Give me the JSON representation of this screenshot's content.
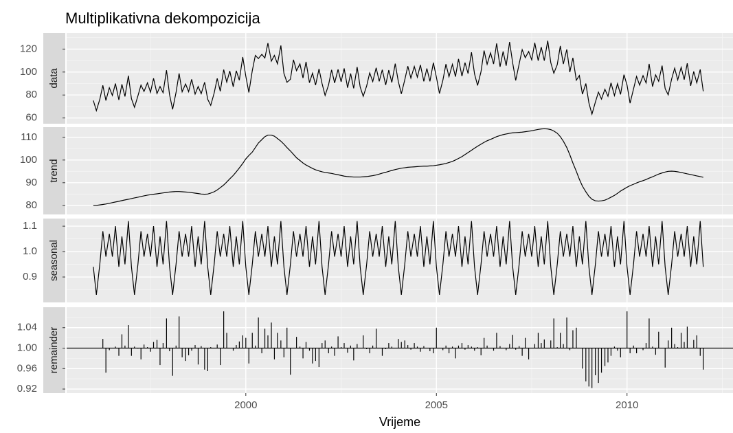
{
  "chart_data": {
    "type": "line",
    "title": "Multiplikativna dekompozicija",
    "xlabel": "Vrijeme",
    "xlim": [
      1995.3,
      2012.78
    ],
    "xticks": [
      2000,
      2005,
      2010
    ],
    "grid": true,
    "color": "#000000",
    "x": [
      1996,
      1996.08,
      1996.17,
      1996.25,
      1996.33,
      1996.42,
      1996.5,
      1996.58,
      1996.67,
      1996.75,
      1996.83,
      1996.92,
      1997,
      1997.08,
      1997.17,
      1997.25,
      1997.33,
      1997.42,
      1997.5,
      1997.58,
      1997.67,
      1997.75,
      1997.83,
      1997.92,
      1998,
      1998.08,
      1998.17,
      1998.25,
      1998.33,
      1998.42,
      1998.5,
      1998.58,
      1998.67,
      1998.75,
      1998.83,
      1998.92,
      1999,
      1999.08,
      1999.17,
      1999.25,
      1999.33,
      1999.42,
      1999.5,
      1999.58,
      1999.67,
      1999.75,
      1999.83,
      1999.92,
      2000,
      2000.08,
      2000.17,
      2000.25,
      2000.33,
      2000.42,
      2000.5,
      2000.58,
      2000.67,
      2000.75,
      2000.83,
      2000.92,
      2001,
      2001.08,
      2001.17,
      2001.25,
      2001.33,
      2001.42,
      2001.5,
      2001.58,
      2001.67,
      2001.75,
      2001.83,
      2001.92,
      2002,
      2002.08,
      2002.17,
      2002.25,
      2002.33,
      2002.42,
      2002.5,
      2002.58,
      2002.67,
      2002.75,
      2002.83,
      2002.92,
      2003,
      2003.08,
      2003.17,
      2003.25,
      2003.33,
      2003.42,
      2003.5,
      2003.58,
      2003.67,
      2003.75,
      2003.83,
      2003.92,
      2004,
      2004.08,
      2004.17,
      2004.25,
      2004.33,
      2004.42,
      2004.5,
      2004.58,
      2004.67,
      2004.75,
      2004.83,
      2004.92,
      2005,
      2005.08,
      2005.17,
      2005.25,
      2005.33,
      2005.42,
      2005.5,
      2005.58,
      2005.67,
      2005.75,
      2005.83,
      2005.92,
      2006,
      2006.08,
      2006.17,
      2006.25,
      2006.33,
      2006.42,
      2006.5,
      2006.58,
      2006.67,
      2006.75,
      2006.83,
      2006.92,
      2007,
      2007.08,
      2007.17,
      2007.25,
      2007.33,
      2007.42,
      2007.5,
      2007.58,
      2007.67,
      2007.75,
      2007.83,
      2007.92,
      2008,
      2008.08,
      2008.17,
      2008.25,
      2008.33,
      2008.42,
      2008.5,
      2008.58,
      2008.67,
      2008.75,
      2008.83,
      2008.92,
      2009,
      2009.08,
      2009.17,
      2009.25,
      2009.33,
      2009.42,
      2009.5,
      2009.58,
      2009.67,
      2009.75,
      2009.83,
      2009.92,
      2010,
      2010.08,
      2010.17,
      2010.25,
      2010.33,
      2010.42,
      2010.5,
      2010.58,
      2010.67,
      2010.75,
      2010.83,
      2010.92,
      2011,
      2011.08,
      2011.17,
      2011.25,
      2011.33,
      2011.42,
      2011.5,
      2011.58,
      2011.67,
      2011.75,
      2011.83,
      2011.92,
      2012
    ],
    "panels": [
      {
        "name": "data",
        "type": "line",
        "ylim": [
          55,
          134
        ],
        "yticks": [
          60,
          80,
          100,
          120
        ],
        "values": [
          75.2,
          66.4,
          76.2,
          88.4,
          75.2,
          86.3,
          79.6,
          90.0,
          75.7,
          89.3,
          78.7,
          96.8,
          76.8,
          69.3,
          79.3,
          88.6,
          83.1,
          90.6,
          82.4,
          94.5,
          81.3,
          87.4,
          82.0,
          101.6,
          80.2,
          67.5,
          82.2,
          98.8,
          82.8,
          89.6,
          82.9,
          93.7,
          80.8,
          87.4,
          81.1,
          91.1,
          76.3,
          71.0,
          81.7,
          94.4,
          83.2,
          102.1,
          91.2,
          100.9,
          87.2,
          101.1,
          92.9,
          113.1,
          96.4,
          82.2,
          101.2,
          114.5,
          111.7,
          115.4,
          112.2,
          125.2,
          109.5,
          114.5,
          107.1,
          123.1,
          98.8,
          91.1,
          93.7,
          110.7,
          101.2,
          107.1,
          94.8,
          108.9,
          90.7,
          99.0,
          88.6,
          102.7,
          90.0,
          79.6,
          88.7,
          101.9,
          90.5,
          102.3,
          91.5,
          103.2,
          86.3,
          98.7,
          85.8,
          104.4,
          87.0,
          78.8,
          87.9,
          99.3,
          91.7,
          103.7,
          91.9,
          102.0,
          88.7,
          101.7,
          90.9,
          107.3,
          91.9,
          81.0,
          93.2,
          105.1,
          94.7,
          104.8,
          95.5,
          106.2,
          91.9,
          103.1,
          91.9,
          108.1,
          95.5,
          81.3,
          92.9,
          106.9,
          95.9,
          106.7,
          96.0,
          111.4,
          96.4,
          108.2,
          98.7,
          117.2,
          98.4,
          88.3,
          100.3,
          118.7,
          106.8,
          116.7,
          107.0,
          124.9,
          104.6,
          117.9,
          105.5,
          126.2,
          108.0,
          92.7,
          107.0,
          119.5,
          112.5,
          117.9,
          110.6,
          125.5,
          109.9,
          121.7,
          109.9,
          127.3,
          108.2,
          99.0,
          106.4,
          122.7,
          107.0,
          119.7,
          99.9,
          112.4,
          92.9,
          97.0,
          80.7,
          90.0,
          73.1,
          63.3,
          73.8,
          82.5,
          76.5,
          85.0,
          78.9,
          90.6,
          79.5,
          89.9,
          80.5,
          97.7,
          88.7,
          72.9,
          85.2,
          96.1,
          88.6,
          96.9,
          90.5,
          107.1,
          87.3,
          97.5,
          92.0,
          105.6,
          85.6,
          80.1,
          93.9,
          103.4,
          93.1,
          104.1,
          93.4,
          107.6,
          88.0,
          100.5,
          90.6,
          102.2,
          83.2
        ]
      },
      {
        "name": "trend",
        "type": "line",
        "ylim": [
          76,
          114.5
        ],
        "yticks": [
          80,
          90,
          100,
          110
        ],
        "values": [
          80,
          80,
          80.2,
          80.4,
          80.6,
          80.9,
          81.2,
          81.5,
          81.8,
          82.1,
          82.4,
          82.7,
          83,
          83.3,
          83.6,
          83.9,
          84.2,
          84.5,
          84.7,
          84.9,
          85.1,
          85.3,
          85.5,
          85.7,
          85.9,
          86,
          86.1,
          86.1,
          86,
          85.9,
          85.8,
          85.6,
          85.4,
          85.2,
          85,
          84.9,
          85,
          85.4,
          86,
          86.8,
          87.8,
          89,
          90.3,
          91.7,
          93.2,
          94.8,
          96.5,
          98.5,
          100.5,
          102,
          103.5,
          105.5,
          107.5,
          109,
          110.3,
          111,
          111,
          110.5,
          109.5,
          108.3,
          107,
          105.5,
          104,
          102.5,
          101,
          99.8,
          98.7,
          97.8,
          97,
          96.3,
          95.7,
          95.2,
          94.8,
          94.5,
          94.3,
          94.1,
          93.8,
          93.5,
          93.2,
          92.9,
          92.7,
          92.6,
          92.5,
          92.5,
          92.5,
          92.6,
          92.7,
          92.9,
          93.1,
          93.4,
          93.8,
          94.2,
          94.6,
          95,
          95.4,
          95.8,
          96.1,
          96.4,
          96.6,
          96.8,
          96.9,
          97,
          97.1,
          97.2,
          97.3,
          97.3,
          97.4,
          97.5,
          97.7,
          97.9,
          98.2,
          98.5,
          98.9,
          99.4,
          100,
          100.7,
          101.5,
          102.4,
          103.3,
          104.3,
          105.2,
          106.1,
          107,
          107.8,
          108.5,
          109.1,
          109.7,
          110.3,
          110.8,
          111.2,
          111.5,
          111.8,
          112,
          112.1,
          112.2,
          112.3,
          112.5,
          112.7,
          112.9,
          113.2,
          113.5,
          113.7,
          113.8,
          113.7,
          113.4,
          112.8,
          111.8,
          110.3,
          108.3,
          105.5,
          102.3,
          98.7,
          95,
          91.5,
          88.5,
          86,
          84,
          82.7,
          82,
          81.9,
          82,
          82.3,
          82.9,
          83.6,
          84.4,
          85.3,
          86.3,
          87.2,
          88,
          88.7,
          89.3,
          89.9,
          90.4,
          90.9,
          91.4,
          92,
          92.6,
          93.2,
          93.8,
          94.3,
          94.7,
          95,
          95.1,
          95,
          94.8,
          94.5,
          94.2,
          93.9,
          93.6,
          93.3,
          93,
          92.7,
          92.4
        ]
      },
      {
        "name": "seasonal",
        "type": "line",
        "ylim": [
          0.8,
          1.13
        ],
        "yticks": [
          0.9,
          {
            "value": 1,
            "label": "1.0"
          },
          1.1
        ],
        "values": [
          0.94,
          0.83,
          0.95,
          1.08,
          0.98,
          1.07,
          0.98,
          1.1,
          0.94,
          1.06,
          0.95,
          1.12,
          0.94,
          0.83,
          0.95,
          1.08,
          0.98,
          1.07,
          0.98,
          1.1,
          0.94,
          1.06,
          0.95,
          1.12,
          0.94,
          0.83,
          0.95,
          1.08,
          0.98,
          1.07,
          0.98,
          1.1,
          0.94,
          1.06,
          0.95,
          1.12,
          0.94,
          0.83,
          0.95,
          1.08,
          0.98,
          1.07,
          0.98,
          1.1,
          0.94,
          1.06,
          0.95,
          1.12,
          0.94,
          0.83,
          0.95,
          1.08,
          0.98,
          1.07,
          0.98,
          1.1,
          0.94,
          1.06,
          0.95,
          1.12,
          0.94,
          0.83,
          0.95,
          1.08,
          0.98,
          1.07,
          0.98,
          1.1,
          0.94,
          1.06,
          0.95,
          1.12,
          0.94,
          0.83,
          0.95,
          1.08,
          0.98,
          1.07,
          0.98,
          1.1,
          0.94,
          1.06,
          0.95,
          1.12,
          0.94,
          0.83,
          0.95,
          1.08,
          0.98,
          1.07,
          0.98,
          1.1,
          0.94,
          1.06,
          0.95,
          1.12,
          0.94,
          0.83,
          0.95,
          1.08,
          0.98,
          1.07,
          0.98,
          1.1,
          0.94,
          1.06,
          0.95,
          1.12,
          0.94,
          0.83,
          0.95,
          1.08,
          0.98,
          1.07,
          0.98,
          1.1,
          0.94,
          1.06,
          0.95,
          1.12,
          0.94,
          0.83,
          0.95,
          1.08,
          0.98,
          1.07,
          0.98,
          1.1,
          0.94,
          1.06,
          0.95,
          1.12,
          0.94,
          0.83,
          0.95,
          1.08,
          0.98,
          1.07,
          0.98,
          1.1,
          0.94,
          1.06,
          0.95,
          1.12,
          0.94,
          0.83,
          0.95,
          1.08,
          0.98,
          1.07,
          0.98,
          1.1,
          0.94,
          1.06,
          0.95,
          1.12,
          0.94,
          0.83,
          0.95,
          1.08,
          0.98,
          1.07,
          0.98,
          1.1,
          0.94,
          1.06,
          0.95,
          1.12,
          0.94,
          0.83,
          0.95,
          1.08,
          0.98,
          1.07,
          0.98,
          1.1,
          0.94,
          1.06,
          0.95,
          1.12,
          0.94,
          0.83,
          0.95,
          1.08,
          0.98,
          1.07,
          0.98,
          1.1,
          0.94,
          1.06,
          0.95,
          1.12,
          0.94
        ]
      },
      {
        "name": "remainder",
        "type": "bar",
        "baseline": 1,
        "ylim": [
          0.912,
          1.08
        ],
        "yticks": [
          0.92,
          0.96,
          {
            "value": 1,
            "label": "1.00"
          },
          1.04
        ],
        "values": [
          1.0,
          1.0,
          1.0,
          1.018,
          0.952,
          0.996,
          1.0,
          1.003,
          0.985,
          1.027,
          1.005,
          1.045,
          0.985,
          1.003,
          0.999,
          0.978,
          1.007,
          1.002,
          0.993,
          1.012,
          1.016,
          0.967,
          1.01,
          1.058,
          0.994,
          0.946,
          1.005,
          1.062,
          0.982,
          0.975,
          0.986,
          0.995,
          1.006,
          0.968,
          1.004,
          0.958,
          0.955,
          1.002,
          1.0,
          1.007,
          0.967,
          1.072,
          1.03,
          1.0,
          0.995,
          1.006,
          1.013,
          1.025,
          1.02,
          0.97,
          1.03,
          1.005,
          1.06,
          0.99,
          1.038,
          1.025,
          1.05,
          0.978,
          1.03,
          1.015,
          0.982,
          1.04,
          0.948,
          1.0,
          1.022,
          1.003,
          0.98,
          1.012,
          0.995,
          0.97,
          0.975,
          0.963,
          1.01,
          1.015,
          0.99,
          1.003,
          0.985,
          1.023,
          1.002,
          1.01,
          0.991,
          1.005,
          0.976,
          1.008,
          1.0,
          1.025,
          0.998,
          0.99,
          1.005,
          1.038,
          1.0,
          0.985,
          0.998,
          1.01,
          1.003,
          1.0,
          1.018,
          1.012,
          1.015,
          1.006,
          0.997,
          1.01,
          1.003,
          0.993,
          1.004,
          1.0,
          0.994,
          0.99,
          1.04,
          1.0,
          0.996,
          1.005,
          0.99,
          1.003,
          0.98,
          1.005,
          1.01,
          0.997,
          1.006,
          1.003,
          0.995,
          1.002,
          0.986,
          1.02,
          1.005,
          1.0,
          0.995,
          1.03,
          1.004,
          1.0,
          0.996,
          1.008,
          1.026,
          0.997,
          1.004,
          0.985,
          1.02,
          0.978,
          1.0,
          1.008,
          1.03,
          1.01,
          1.017,
          1.0,
          1.015,
          1.058,
          1.002,
          1.03,
          1.008,
          1.06,
          0.996,
          1.035,
          1.04,
          1.0,
          0.96,
          0.935,
          0.925,
          0.922,
          0.947,
          0.932,
          0.952,
          0.965,
          0.972,
          0.985,
          1.003,
          0.995,
          0.982,
          1.0,
          1.072,
          0.99,
          1.005,
          0.99,
          1.0,
          0.996,
          1.01,
          1.058,
          1.003,
          0.987,
          1.032,
          1.0,
          0.962,
          1.015,
          1.04,
          1.008,
          1.002,
          1.03,
          1.012,
          1.042,
          1.0,
          1.016,
          1.025,
          0.985,
          0.958
        ]
      }
    ]
  }
}
